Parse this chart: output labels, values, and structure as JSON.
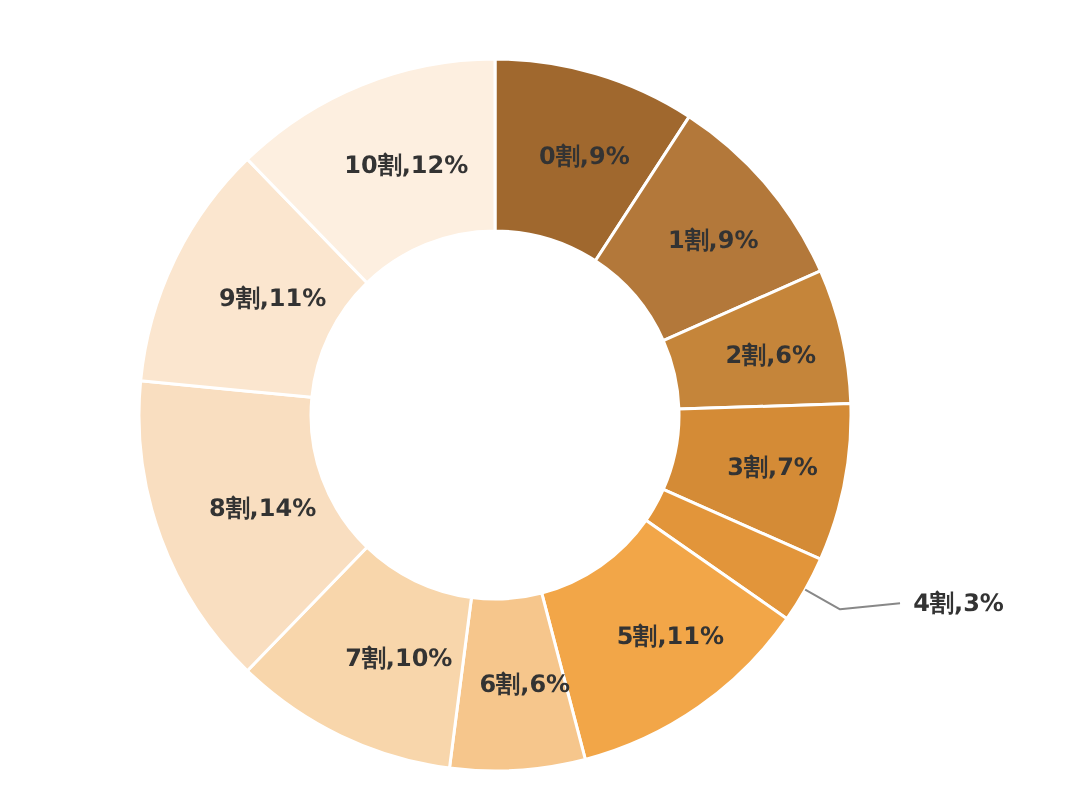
{
  "chart_data": {
    "type": "donut",
    "categories": [
      "0割",
      "1割",
      "2割",
      "3割",
      "4割",
      "5割",
      "6割",
      "7割",
      "8割",
      "9割",
      "10割"
    ],
    "values": [
      9,
      9,
      6,
      7,
      3,
      11,
      6,
      10,
      14,
      11,
      12
    ],
    "value_labels": [
      ",9%",
      ",9%",
      ",6%",
      ",7%",
      ",3%",
      ",11%",
      ",6%",
      ",10%",
      ",14%",
      ",11%",
      ",12%"
    ],
    "colors": [
      "#a0682e",
      "#b3783a",
      "#c5853a",
      "#d48b36",
      "#e2953a",
      "#f2a648",
      "#f6c68c",
      "#f8d6ab",
      "#f9dec0",
      "#fbe6cf",
      "#fdefe0"
    ]
  }
}
